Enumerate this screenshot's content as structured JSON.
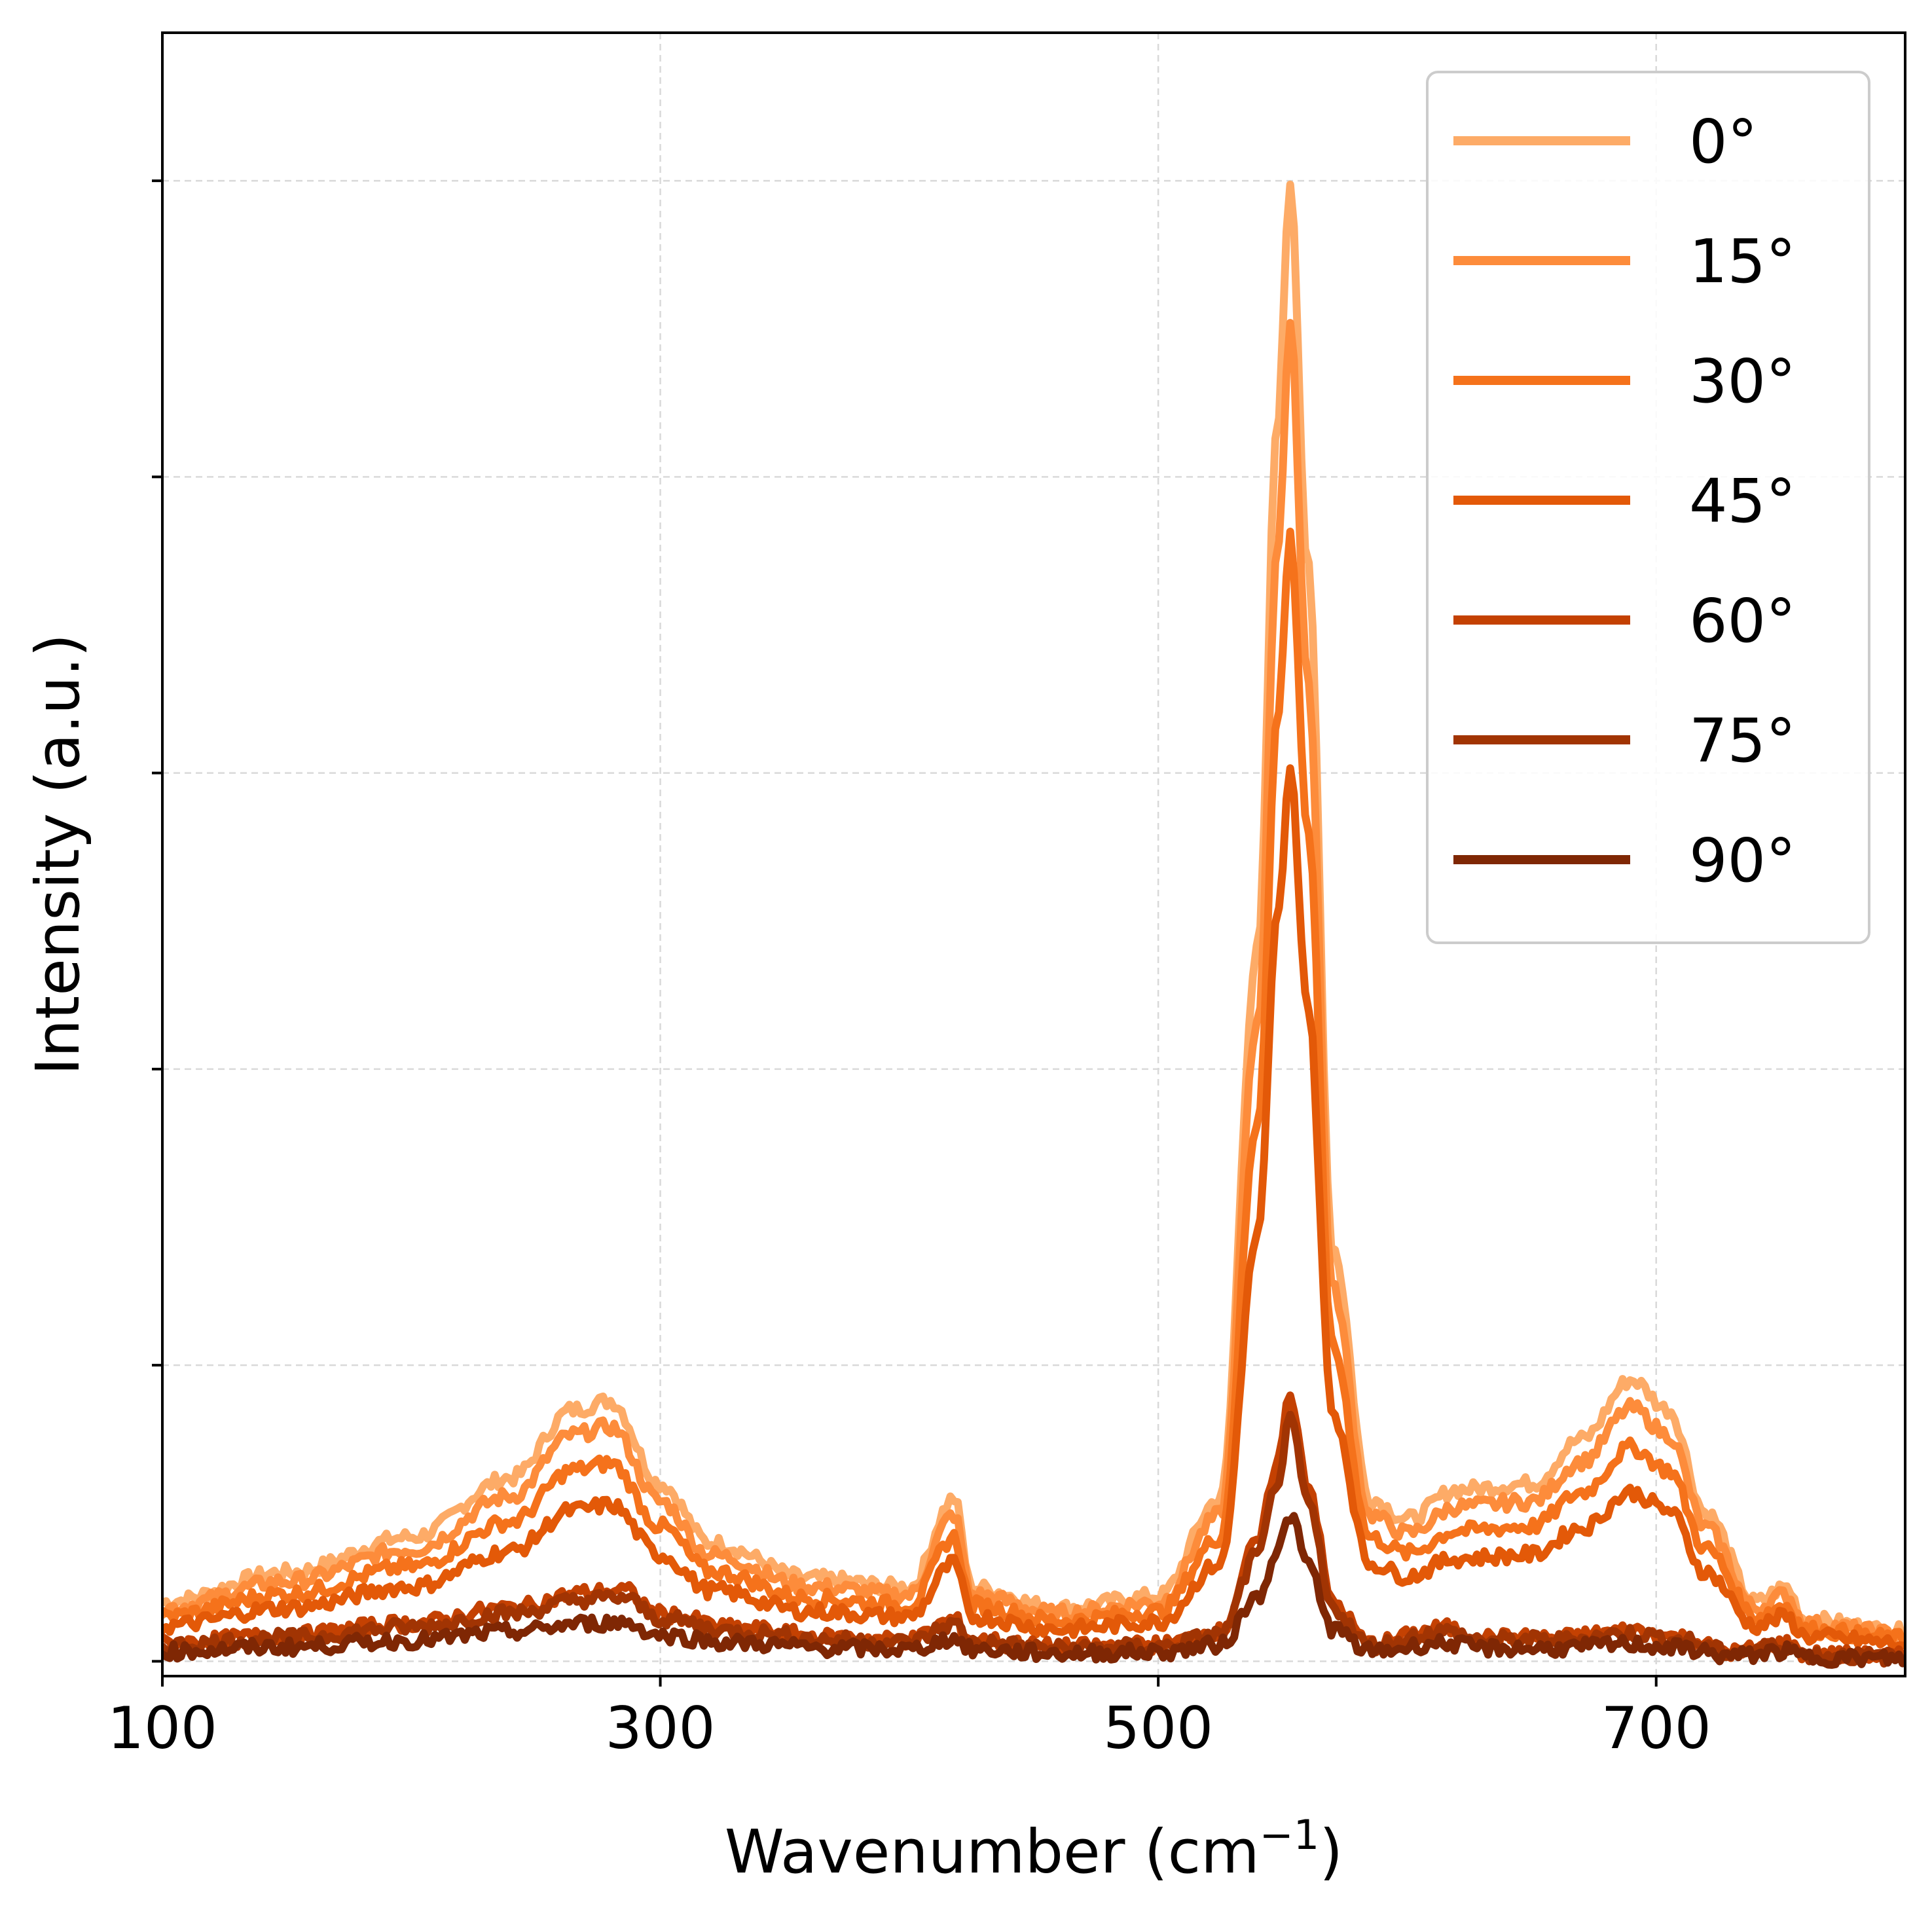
{
  "chart_data": {
    "type": "line",
    "xlabel": "Wavenumber (cm",
    "xlabel_sup": "−1",
    "xlabel_end": ")",
    "ylabel": "Intensity (a.u.)",
    "xlim": [
      100,
      800
    ],
    "ylim": [
      -0.05,
      5.5
    ],
    "x_ticks": [
      100,
      300,
      500,
      700
    ],
    "y_ticks": [
      0,
      1,
      2,
      3,
      4,
      5
    ],
    "y_tick_labels_shown": false,
    "grid": true,
    "legend_position": "top-right",
    "series": [
      {
        "name": "0°",
        "color": "#fdab67",
        "scale": 1.0,
        "points": [
          [
            100,
            0.2
          ],
          [
            150,
            0.3
          ],
          [
            200,
            0.42
          ],
          [
            240,
            0.62
          ],
          [
            265,
            0.85
          ],
          [
            280,
            0.88
          ],
          [
            300,
            0.6
          ],
          [
            320,
            0.4
          ],
          [
            360,
            0.28
          ],
          [
            400,
            0.25
          ],
          [
            418,
            0.55
          ],
          [
            425,
            0.25
          ],
          [
            460,
            0.18
          ],
          [
            500,
            0.22
          ],
          [
            525,
            0.55
          ],
          [
            540,
            2.4
          ],
          [
            548,
            4.2
          ],
          [
            553,
            5.0
          ],
          [
            560,
            3.7
          ],
          [
            570,
            1.4
          ],
          [
            585,
            0.55
          ],
          [
            600,
            0.48
          ],
          [
            620,
            0.58
          ],
          [
            650,
            0.6
          ],
          [
            670,
            0.75
          ],
          [
            690,
            0.95
          ],
          [
            705,
            0.85
          ],
          [
            720,
            0.5
          ],
          [
            740,
            0.2
          ],
          [
            752,
            0.25
          ],
          [
            760,
            0.14
          ],
          [
            800,
            0.1
          ]
        ]
      },
      {
        "name": "15°",
        "color": "#fd8c3b",
        "scale": 0.9,
        "points": [
          [
            100,
            0.2
          ],
          [
            150,
            0.3
          ],
          [
            200,
            0.42
          ],
          [
            240,
            0.62
          ],
          [
            265,
            0.85
          ],
          [
            280,
            0.88
          ],
          [
            300,
            0.6
          ],
          [
            320,
            0.4
          ],
          [
            360,
            0.28
          ],
          [
            400,
            0.25
          ],
          [
            418,
            0.55
          ],
          [
            425,
            0.25
          ],
          [
            460,
            0.18
          ],
          [
            500,
            0.22
          ],
          [
            525,
            0.55
          ],
          [
            540,
            2.4
          ],
          [
            548,
            4.2
          ],
          [
            553,
            5.0
          ],
          [
            560,
            3.7
          ],
          [
            570,
            1.4
          ],
          [
            585,
            0.55
          ],
          [
            600,
            0.48
          ],
          [
            620,
            0.58
          ],
          [
            650,
            0.6
          ],
          [
            670,
            0.75
          ],
          [
            690,
            0.95
          ],
          [
            705,
            0.85
          ],
          [
            720,
            0.5
          ],
          [
            740,
            0.2
          ],
          [
            752,
            0.25
          ],
          [
            760,
            0.14
          ],
          [
            800,
            0.1
          ]
        ]
      },
      {
        "name": "30°",
        "color": "#f5721b",
        "scale": 0.76,
        "points": [
          [
            100,
            0.2
          ],
          [
            150,
            0.3
          ],
          [
            200,
            0.42
          ],
          [
            240,
            0.62
          ],
          [
            265,
            0.85
          ],
          [
            280,
            0.88
          ],
          [
            300,
            0.6
          ],
          [
            320,
            0.4
          ],
          [
            360,
            0.28
          ],
          [
            400,
            0.25
          ],
          [
            418,
            0.55
          ],
          [
            425,
            0.25
          ],
          [
            460,
            0.18
          ],
          [
            500,
            0.22
          ],
          [
            525,
            0.55
          ],
          [
            540,
            2.4
          ],
          [
            548,
            4.2
          ],
          [
            553,
            5.0
          ],
          [
            560,
            3.7
          ],
          [
            570,
            1.4
          ],
          [
            585,
            0.55
          ],
          [
            600,
            0.48
          ],
          [
            620,
            0.58
          ],
          [
            650,
            0.6
          ],
          [
            670,
            0.75
          ],
          [
            690,
            0.95
          ],
          [
            705,
            0.85
          ],
          [
            720,
            0.5
          ],
          [
            740,
            0.2
          ],
          [
            752,
            0.25
          ],
          [
            760,
            0.14
          ],
          [
            800,
            0.1
          ]
        ]
      },
      {
        "name": "45°",
        "color": "#e35908",
        "scale": 0.6,
        "points": [
          [
            100,
            0.2
          ],
          [
            150,
            0.3
          ],
          [
            200,
            0.42
          ],
          [
            240,
            0.62
          ],
          [
            265,
            0.85
          ],
          [
            280,
            0.88
          ],
          [
            300,
            0.6
          ],
          [
            320,
            0.4
          ],
          [
            360,
            0.28
          ],
          [
            400,
            0.25
          ],
          [
            418,
            0.55
          ],
          [
            425,
            0.25
          ],
          [
            460,
            0.18
          ],
          [
            500,
            0.22
          ],
          [
            525,
            0.55
          ],
          [
            540,
            2.4
          ],
          [
            548,
            4.2
          ],
          [
            553,
            5.0
          ],
          [
            560,
            3.7
          ],
          [
            570,
            1.4
          ],
          [
            585,
            0.55
          ],
          [
            600,
            0.48
          ],
          [
            620,
            0.58
          ],
          [
            650,
            0.6
          ],
          [
            670,
            0.75
          ],
          [
            690,
            0.95
          ],
          [
            705,
            0.85
          ],
          [
            720,
            0.5
          ],
          [
            740,
            0.2
          ],
          [
            752,
            0.25
          ],
          [
            760,
            0.14
          ],
          [
            800,
            0.1
          ]
        ]
      },
      {
        "name": "60°",
        "color": "#c44102",
        "scale": 0.4,
        "points": [
          [
            100,
            0.15
          ],
          [
            150,
            0.22
          ],
          [
            200,
            0.32
          ],
          [
            240,
            0.45
          ],
          [
            270,
            0.58
          ],
          [
            285,
            0.6
          ],
          [
            300,
            0.4
          ],
          [
            330,
            0.28
          ],
          [
            370,
            0.2
          ],
          [
            400,
            0.18
          ],
          [
            418,
            0.35
          ],
          [
            425,
            0.18
          ],
          [
            460,
            0.12
          ],
          [
            500,
            0.14
          ],
          [
            525,
            0.25
          ],
          [
            540,
            1.0
          ],
          [
            548,
            1.7
          ],
          [
            553,
            2.25
          ],
          [
            560,
            1.5
          ],
          [
            570,
            0.5
          ],
          [
            585,
            0.15
          ],
          [
            615,
            0.28
          ],
          [
            630,
            0.2
          ],
          [
            660,
            0.2
          ],
          [
            690,
            0.26
          ],
          [
            710,
            0.2
          ],
          [
            730,
            0.08
          ],
          [
            752,
            0.15
          ],
          [
            760,
            0.06
          ],
          [
            800,
            0.04
          ]
        ]
      },
      {
        "name": "75°",
        "color": "#a13403",
        "scale": 0.36,
        "points": [
          [
            100,
            0.15
          ],
          [
            150,
            0.22
          ],
          [
            200,
            0.32
          ],
          [
            240,
            0.45
          ],
          [
            270,
            0.58
          ],
          [
            285,
            0.6
          ],
          [
            300,
            0.4
          ],
          [
            330,
            0.28
          ],
          [
            370,
            0.2
          ],
          [
            400,
            0.18
          ],
          [
            418,
            0.35
          ],
          [
            425,
            0.18
          ],
          [
            460,
            0.12
          ],
          [
            500,
            0.14
          ],
          [
            525,
            0.25
          ],
          [
            540,
            1.0
          ],
          [
            548,
            1.7
          ],
          [
            553,
            2.25
          ],
          [
            560,
            1.5
          ],
          [
            570,
            0.5
          ],
          [
            585,
            0.15
          ],
          [
            615,
            0.28
          ],
          [
            630,
            0.2
          ],
          [
            660,
            0.2
          ],
          [
            690,
            0.26
          ],
          [
            710,
            0.2
          ],
          [
            730,
            0.08
          ],
          [
            752,
            0.15
          ],
          [
            760,
            0.06
          ],
          [
            800,
            0.04
          ]
        ]
      },
      {
        "name": "90°",
        "color": "#7f2704",
        "scale": 0.22,
        "points": [
          [
            100,
            0.15
          ],
          [
            150,
            0.22
          ],
          [
            200,
            0.32
          ],
          [
            240,
            0.45
          ],
          [
            270,
            0.58
          ],
          [
            285,
            0.6
          ],
          [
            300,
            0.4
          ],
          [
            330,
            0.28
          ],
          [
            370,
            0.2
          ],
          [
            400,
            0.18
          ],
          [
            418,
            0.35
          ],
          [
            425,
            0.18
          ],
          [
            460,
            0.12
          ],
          [
            500,
            0.14
          ],
          [
            525,
            0.25
          ],
          [
            540,
            1.0
          ],
          [
            548,
            1.7
          ],
          [
            553,
            2.25
          ],
          [
            560,
            1.5
          ],
          [
            570,
            0.5
          ],
          [
            585,
            0.15
          ],
          [
            615,
            0.28
          ],
          [
            630,
            0.2
          ],
          [
            660,
            0.2
          ],
          [
            690,
            0.26
          ],
          [
            710,
            0.2
          ],
          [
            730,
            0.08
          ],
          [
            752,
            0.15
          ],
          [
            760,
            0.06
          ],
          [
            800,
            0.04
          ]
        ]
      }
    ]
  }
}
